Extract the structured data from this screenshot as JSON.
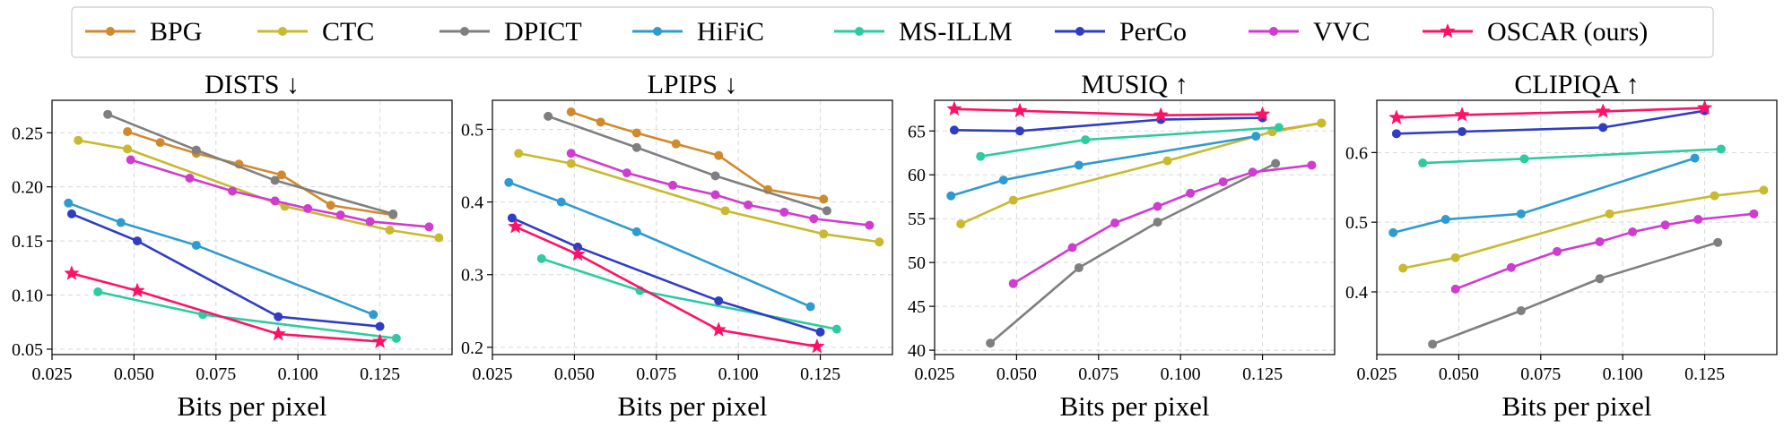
{
  "colors": {
    "BPG": "#d08a2e",
    "CTC": "#c9b92f",
    "DPICT": "#7f7f7f",
    "HiFiC": "#2e9bd0",
    "MS-ILLM": "#2ecba0",
    "PerCo": "#2f3dc4",
    "VVC": "#d03bd0",
    "OSCAR (ours)": "#ff1166"
  },
  "legend": [
    "BPG",
    "CTC",
    "DPICT",
    "HiFiC",
    "MS-ILLM",
    "PerCo",
    "VVC",
    "OSCAR (ours)"
  ],
  "chart_data": [
    {
      "type": "line",
      "title": "DISTS ↓",
      "xlabel": "Bits per pixel",
      "ylabel": "",
      "xlim": [
        0.025,
        0.147
      ],
      "ylim": [
        0.045,
        0.28
      ],
      "xticks": [
        0.025,
        0.05,
        0.075,
        0.1,
        0.125
      ],
      "xtick_labels": [
        "0.025",
        "0.050",
        "0.075",
        "0.100",
        "0.125"
      ],
      "yticks": [
        0.05,
        0.1,
        0.15,
        0.2,
        0.25
      ],
      "ytick_labels": [
        "0.05",
        "0.10",
        "0.15",
        "0.20",
        "0.25"
      ],
      "grid": true,
      "series": [
        {
          "name": "BPG",
          "x": [
            0.048,
            0.058,
            0.069,
            0.082,
            0.095,
            0.11,
            0.129
          ],
          "y": [
            0.251,
            0.241,
            0.231,
            0.221,
            0.211,
            0.183,
            0.174
          ]
        },
        {
          "name": "CTC",
          "x": [
            0.033,
            0.048,
            0.096,
            0.128,
            0.143
          ],
          "y": [
            0.243,
            0.235,
            0.182,
            0.16,
            0.153
          ]
        },
        {
          "name": "DPICT",
          "x": [
            0.042,
            0.069,
            0.093,
            0.129
          ],
          "y": [
            0.267,
            0.234,
            0.206,
            0.175
          ]
        },
        {
          "name": "HiFiC",
          "x": [
            0.03,
            0.046,
            0.069,
            0.123
          ],
          "y": [
            0.185,
            0.167,
            0.146,
            0.082
          ]
        },
        {
          "name": "MS-ILLM",
          "x": [
            0.039,
            0.071,
            0.13
          ],
          "y": [
            0.103,
            0.082,
            0.06
          ]
        },
        {
          "name": "PerCo",
          "x": [
            0.031,
            0.051,
            0.094,
            0.125
          ],
          "y": [
            0.175,
            0.15,
            0.08,
            0.071
          ]
        },
        {
          "name": "VVC",
          "x": [
            0.049,
            0.067,
            0.08,
            0.093,
            0.103,
            0.113,
            0.122,
            0.14
          ],
          "y": [
            0.225,
            0.208,
            0.196,
            0.187,
            0.18,
            0.174,
            0.168,
            0.163
          ]
        },
        {
          "name": "OSCAR (ours)",
          "x": [
            0.031,
            0.051,
            0.094,
            0.125
          ],
          "y": [
            0.12,
            0.104,
            0.064,
            0.057
          ]
        }
      ]
    },
    {
      "type": "line",
      "title": "LPIPS ↓",
      "xlabel": "Bits per pixel",
      "ylabel": "",
      "xlim": [
        0.025,
        0.147
      ],
      "ylim": [
        0.19,
        0.54
      ],
      "xticks": [
        0.025,
        0.05,
        0.075,
        0.1,
        0.125
      ],
      "xtick_labels": [
        "0.025",
        "0.050",
        "0.075",
        "0.100",
        "0.125"
      ],
      "yticks": [
        0.2,
        0.3,
        0.4,
        0.5
      ],
      "ytick_labels": [
        "0.2",
        "0.3",
        "0.4",
        "0.5"
      ],
      "grid": true,
      "series": [
        {
          "name": "BPG",
          "x": [
            0.049,
            0.058,
            0.069,
            0.081,
            0.094,
            0.109,
            0.126
          ],
          "y": [
            0.524,
            0.51,
            0.495,
            0.48,
            0.464,
            0.417,
            0.404
          ]
        },
        {
          "name": "CTC",
          "x": [
            0.033,
            0.049,
            0.096,
            0.126,
            0.143
          ],
          "y": [
            0.467,
            0.453,
            0.388,
            0.356,
            0.345
          ]
        },
        {
          "name": "DPICT",
          "x": [
            0.042,
            0.069,
            0.093,
            0.127
          ],
          "y": [
            0.518,
            0.475,
            0.436,
            0.388
          ]
        },
        {
          "name": "HiFiC",
          "x": [
            0.03,
            0.046,
            0.069,
            0.122
          ],
          "y": [
            0.427,
            0.4,
            0.359,
            0.256
          ]
        },
        {
          "name": "MS-ILLM",
          "x": [
            0.04,
            0.07,
            0.13
          ],
          "y": [
            0.322,
            0.278,
            0.225
          ]
        },
        {
          "name": "PerCo",
          "x": [
            0.031,
            0.051,
            0.094,
            0.125
          ],
          "y": [
            0.378,
            0.338,
            0.264,
            0.221
          ]
        },
        {
          "name": "VVC",
          "x": [
            0.049,
            0.066,
            0.08,
            0.093,
            0.103,
            0.114,
            0.123,
            0.14
          ],
          "y": [
            0.467,
            0.44,
            0.423,
            0.41,
            0.396,
            0.386,
            0.377,
            0.368
          ]
        },
        {
          "name": "OSCAR (ours)",
          "x": [
            0.032,
            0.051,
            0.094,
            0.124
          ],
          "y": [
            0.366,
            0.328,
            0.224,
            0.201
          ]
        }
      ]
    },
    {
      "type": "line",
      "title": "MUSIQ ↑",
      "xlabel": "Bits per pixel",
      "ylabel": "",
      "xlim": [
        0.025,
        0.147
      ],
      "ylim": [
        39.5,
        68.5
      ],
      "xticks": [
        0.025,
        0.05,
        0.075,
        0.1,
        0.125
      ],
      "xtick_labels": [
        "0.025",
        "0.050",
        "0.075",
        "0.100",
        "0.125"
      ],
      "yticks": [
        40,
        45,
        50,
        55,
        60,
        65
      ],
      "ytick_labels": [
        "40",
        "45",
        "50",
        "55",
        "60",
        "65"
      ],
      "grid": true,
      "series": [
        {
          "name": "BPG",
          "x": [
            0.128,
            0.143
          ],
          "y": [
            65.0,
            65.9
          ]
        },
        {
          "name": "CTC",
          "x": [
            0.033,
            0.049,
            0.096,
            0.128,
            0.143
          ],
          "y": [
            54.4,
            57.1,
            61.6,
            64.9,
            65.9
          ]
        },
        {
          "name": "DPICT",
          "x": [
            0.042,
            0.069,
            0.093,
            0.129
          ],
          "y": [
            40.8,
            49.4,
            54.6,
            61.3
          ]
        },
        {
          "name": "HiFiC",
          "x": [
            0.03,
            0.046,
            0.069,
            0.123
          ],
          "y": [
            57.6,
            59.4,
            61.1,
            64.4
          ]
        },
        {
          "name": "MS-ILLM",
          "x": [
            0.039,
            0.071,
            0.13
          ],
          "y": [
            62.1,
            64.0,
            65.4
          ]
        },
        {
          "name": "PerCo",
          "x": [
            0.031,
            0.051,
            0.094,
            0.125
          ],
          "y": [
            65.1,
            65.0,
            66.3,
            66.5
          ]
        },
        {
          "name": "VVC",
          "x": [
            0.049,
            0.067,
            0.08,
            0.093,
            0.103,
            0.113,
            0.122,
            0.14
          ],
          "y": [
            47.6,
            51.7,
            54.5,
            56.4,
            57.9,
            59.2,
            60.3,
            61.1
          ]
        },
        {
          "name": "OSCAR (ours)",
          "x": [
            0.031,
            0.051,
            0.094,
            0.125
          ],
          "y": [
            67.5,
            67.3,
            66.8,
            66.9
          ]
        }
      ]
    },
    {
      "type": "line",
      "title": "CLIPIQA ↑",
      "xlabel": "Bits per pixel",
      "ylabel": "",
      "xlim": [
        0.025,
        0.147
      ],
      "ylim": [
        0.31,
        0.675
      ],
      "xticks": [
        0.025,
        0.05,
        0.075,
        0.1,
        0.125
      ],
      "xtick_labels": [
        "0.025",
        "0.050",
        "0.075",
        "0.100",
        "0.125"
      ],
      "yticks": [
        0.4,
        0.5,
        0.6
      ],
      "ytick_labels": [
        "0.4",
        "0.5",
        "0.6"
      ],
      "grid": true,
      "series": [
        {
          "name": "CTC",
          "x": [
            0.033,
            0.049,
            0.096,
            0.128,
            0.143
          ],
          "y": [
            0.434,
            0.449,
            0.512,
            0.538,
            0.546
          ]
        },
        {
          "name": "DPICT",
          "x": [
            0.042,
            0.069,
            0.093,
            0.129
          ],
          "y": [
            0.325,
            0.373,
            0.419,
            0.471
          ]
        },
        {
          "name": "HiFiC",
          "x": [
            0.03,
            0.046,
            0.069,
            0.122
          ],
          "y": [
            0.485,
            0.504,
            0.512,
            0.592
          ]
        },
        {
          "name": "MS-ILLM",
          "x": [
            0.039,
            0.07,
            0.13
          ],
          "y": [
            0.585,
            0.591,
            0.605
          ]
        },
        {
          "name": "PerCo",
          "x": [
            0.031,
            0.051,
            0.094,
            0.125
          ],
          "y": [
            0.627,
            0.63,
            0.636,
            0.66
          ]
        },
        {
          "name": "VVC",
          "x": [
            0.049,
            0.066,
            0.08,
            0.093,
            0.103,
            0.113,
            0.123,
            0.14
          ],
          "y": [
            0.404,
            0.435,
            0.458,
            0.472,
            0.486,
            0.496,
            0.504,
            0.512
          ]
        },
        {
          "name": "OSCAR (ours)",
          "x": [
            0.031,
            0.051,
            0.094,
            0.125
          ],
          "y": [
            0.65,
            0.654,
            0.659,
            0.664
          ]
        }
      ]
    }
  ]
}
